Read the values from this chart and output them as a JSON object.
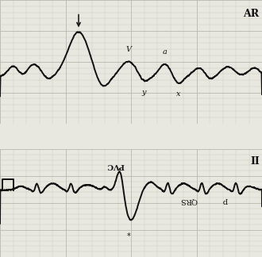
{
  "bg_color": "#e8e8e0",
  "grid_minor_color": "#c8c8bc",
  "grid_major_color": "#b8b8ac",
  "line_color": "#111111",
  "figsize": [
    3.3,
    3.24
  ],
  "dpi": 100,
  "top_label": "AR",
  "bottom_label": "II",
  "pvc_label": "PVC",
  "qrs_label": "QRS",
  "p_label": "p",
  "v_label": "V",
  "a_label": "a",
  "x_label": "x",
  "y_label": "y"
}
